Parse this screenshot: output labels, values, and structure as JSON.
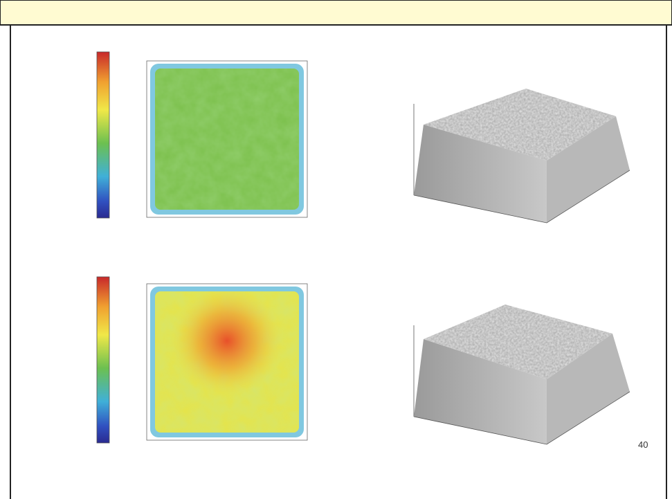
{
  "page_number": "40"
}
